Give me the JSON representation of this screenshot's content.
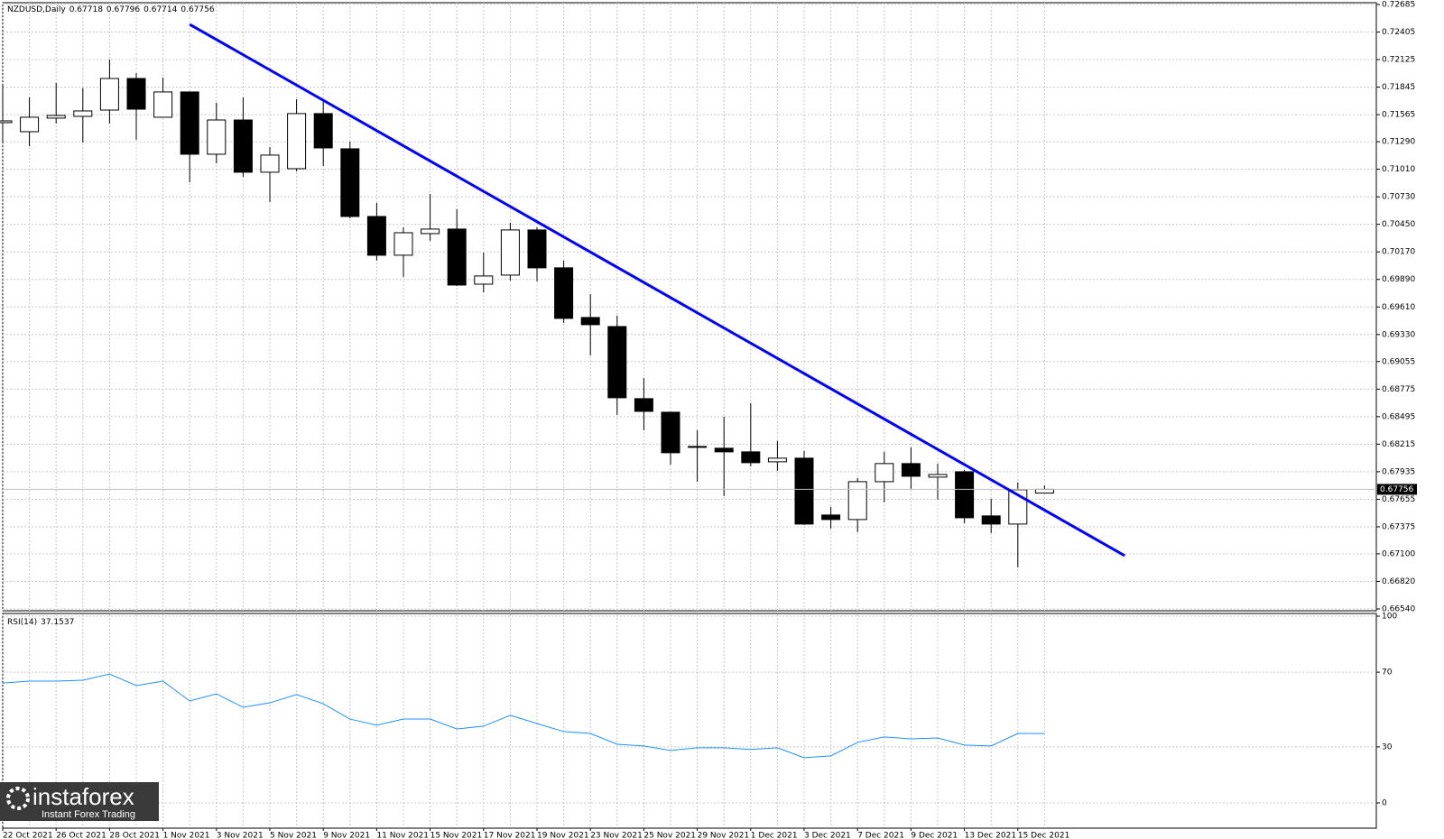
{
  "chart_data": [
    {
      "type": "candlestick",
      "title": "NZDUSD,Daily",
      "categories": [
        "22 Oct 2021",
        null,
        "26 Oct 2021",
        null,
        "28 Oct 2021",
        null,
        "1 Nov 2021",
        null,
        "3 Nov 2021",
        null,
        "5 Nov 2021",
        null,
        "9 Nov 2021",
        null,
        "11 Nov 2021",
        null,
        "15 Nov 2021",
        null,
        "17 Nov 2021",
        null,
        "19 Nov 2021",
        null,
        "23 Nov 2021",
        null,
        "25 Nov 2021",
        null,
        "29 Nov 2021",
        null,
        "1 Dec 2021",
        null,
        "3 Dec 2021",
        null,
        "7 Dec 2021",
        null,
        "9 Dec 2021",
        null,
        "13 Dec 2021",
        null,
        "15 Dec 2021",
        null
      ],
      "open": [
        0.71484,
        0.71392,
        0.7153,
        0.71548,
        0.71612,
        0.71933,
        0.71539,
        0.71796,
        0.71163,
        0.71511,
        0.7098,
        0.71016,
        0.71576,
        0.71218,
        0.7053,
        0.70136,
        0.70356,
        0.70402,
        0.69842,
        0.69934,
        0.70393,
        0.70008,
        0.69503,
        0.69411,
        0.68678,
        0.6854,
        0.68192,
        0.68174,
        0.68137,
        0.68036,
        0.68073,
        0.67495,
        0.67449,
        0.67834,
        0.68018,
        0.6788,
        0.67935,
        0.67486,
        0.67403,
        0.67718
      ],
      "high": [
        0.7186,
        0.71741,
        0.71887,
        0.71836,
        0.72126,
        0.71988,
        0.71942,
        0.718,
        0.71686,
        0.71741,
        0.71236,
        0.71722,
        0.71695,
        0.71291,
        0.70668,
        0.7042,
        0.70759,
        0.70604,
        0.70163,
        0.70466,
        0.7042,
        0.70081,
        0.69741,
        0.69522,
        0.68889,
        0.68545,
        0.68357,
        0.68494,
        0.68632,
        0.68247,
        0.68146,
        0.67577,
        0.67871,
        0.68137,
        0.68183,
        0.68018,
        0.67953,
        0.6766,
        0.67825,
        0.67796
      ],
      "low": [
        0.71282,
        0.71245,
        0.71475,
        0.71282,
        0.71475,
        0.7131,
        0.71539,
        0.70879,
        0.71071,
        0.70934,
        0.70677,
        0.70989,
        0.71044,
        0.70512,
        0.70081,
        0.69916,
        0.70283,
        0.69824,
        0.6976,
        0.69879,
        0.6987,
        0.69448,
        0.69118,
        0.68513,
        0.68357,
        0.68008,
        0.67834,
        0.67688,
        0.6799,
        0.67944,
        0.67394,
        0.67357,
        0.67321,
        0.67623,
        0.67761,
        0.67651,
        0.67412,
        0.67312,
        0.66963,
        0.67714
      ],
      "close": [
        0.71502,
        0.71539,
        0.71557,
        0.71603,
        0.71933,
        0.71621,
        0.71796,
        0.71163,
        0.71511,
        0.7098,
        0.71154,
        0.71576,
        0.71227,
        0.7053,
        0.70136,
        0.70365,
        0.70402,
        0.69833,
        0.69925,
        0.70393,
        0.70008,
        0.69494,
        0.6943,
        0.68687,
        0.68549,
        0.68128,
        0.68183,
        0.68137,
        0.68027,
        0.68073,
        0.67403,
        0.67449,
        0.67834,
        0.68018,
        0.67889,
        0.67907,
        0.67467,
        0.67403,
        0.67752,
        0.67756
      ],
      "up_color": "#ffffff",
      "down_color": "#000000",
      "trendline": {
        "start": [
          7,
          0.72483
        ],
        "end": [
          42,
          0.67082
        ],
        "color": "#0000ff"
      },
      "ylim": [
        0.6654,
        0.72685
      ],
      "yticks": [
        {
          "value": 0.6654,
          "label": "0.66540"
        },
        {
          "value": 0.6682,
          "label": "0.66820"
        },
        {
          "value": 0.671,
          "label": "0.67100"
        },
        0.67375,
        0.67655,
        0.67935,
        0.68215,
        0.68495,
        0.68775,
        0.69055,
        {
          "value": 0.6933,
          "label": "0.69330"
        },
        {
          "value": 0.6961,
          "label": "0.69610"
        },
        {
          "value": 0.6989,
          "label": "0.69890"
        },
        {
          "value": 0.7017,
          "label": "0.70170"
        },
        {
          "value": 0.7045,
          "label": "0.70450"
        },
        {
          "value": 0.7073,
          "label": "0.70730"
        },
        {
          "value": 0.7101,
          "label": "0.71010"
        },
        {
          "value": 0.7129,
          "label": "0.71290"
        },
        0.71565,
        0.71845,
        0.72125,
        0.72405,
        0.72685
      ],
      "grid": true
    },
    {
      "type": "line",
      "title": "RSI(14)",
      "color": "#1e90ff",
      "values": [
        64.2,
        65.2,
        65.2,
        65.7,
        69.0,
        62.8,
        65.2,
        54.6,
        58.4,
        51.2,
        53.6,
        58.0,
        53.1,
        44.9,
        41.6,
        44.9,
        44.9,
        39.6,
        41.1,
        46.9,
        42.5,
        38.2,
        37.2,
        31.4,
        30.5,
        28.1,
        29.5,
        29.5,
        28.6,
        29.5,
        24.2,
        25.2,
        32.4,
        35.3,
        34.3,
        34.8,
        31.0,
        30.5,
        37.2,
        37.1537
      ],
      "ylim": [
        0,
        100
      ],
      "yticks": [
        0,
        30,
        70,
        100
      ],
      "grid": true
    }
  ],
  "watermark": {
    "name": "instaforex",
    "tagline": "Instant Forex Trading"
  }
}
